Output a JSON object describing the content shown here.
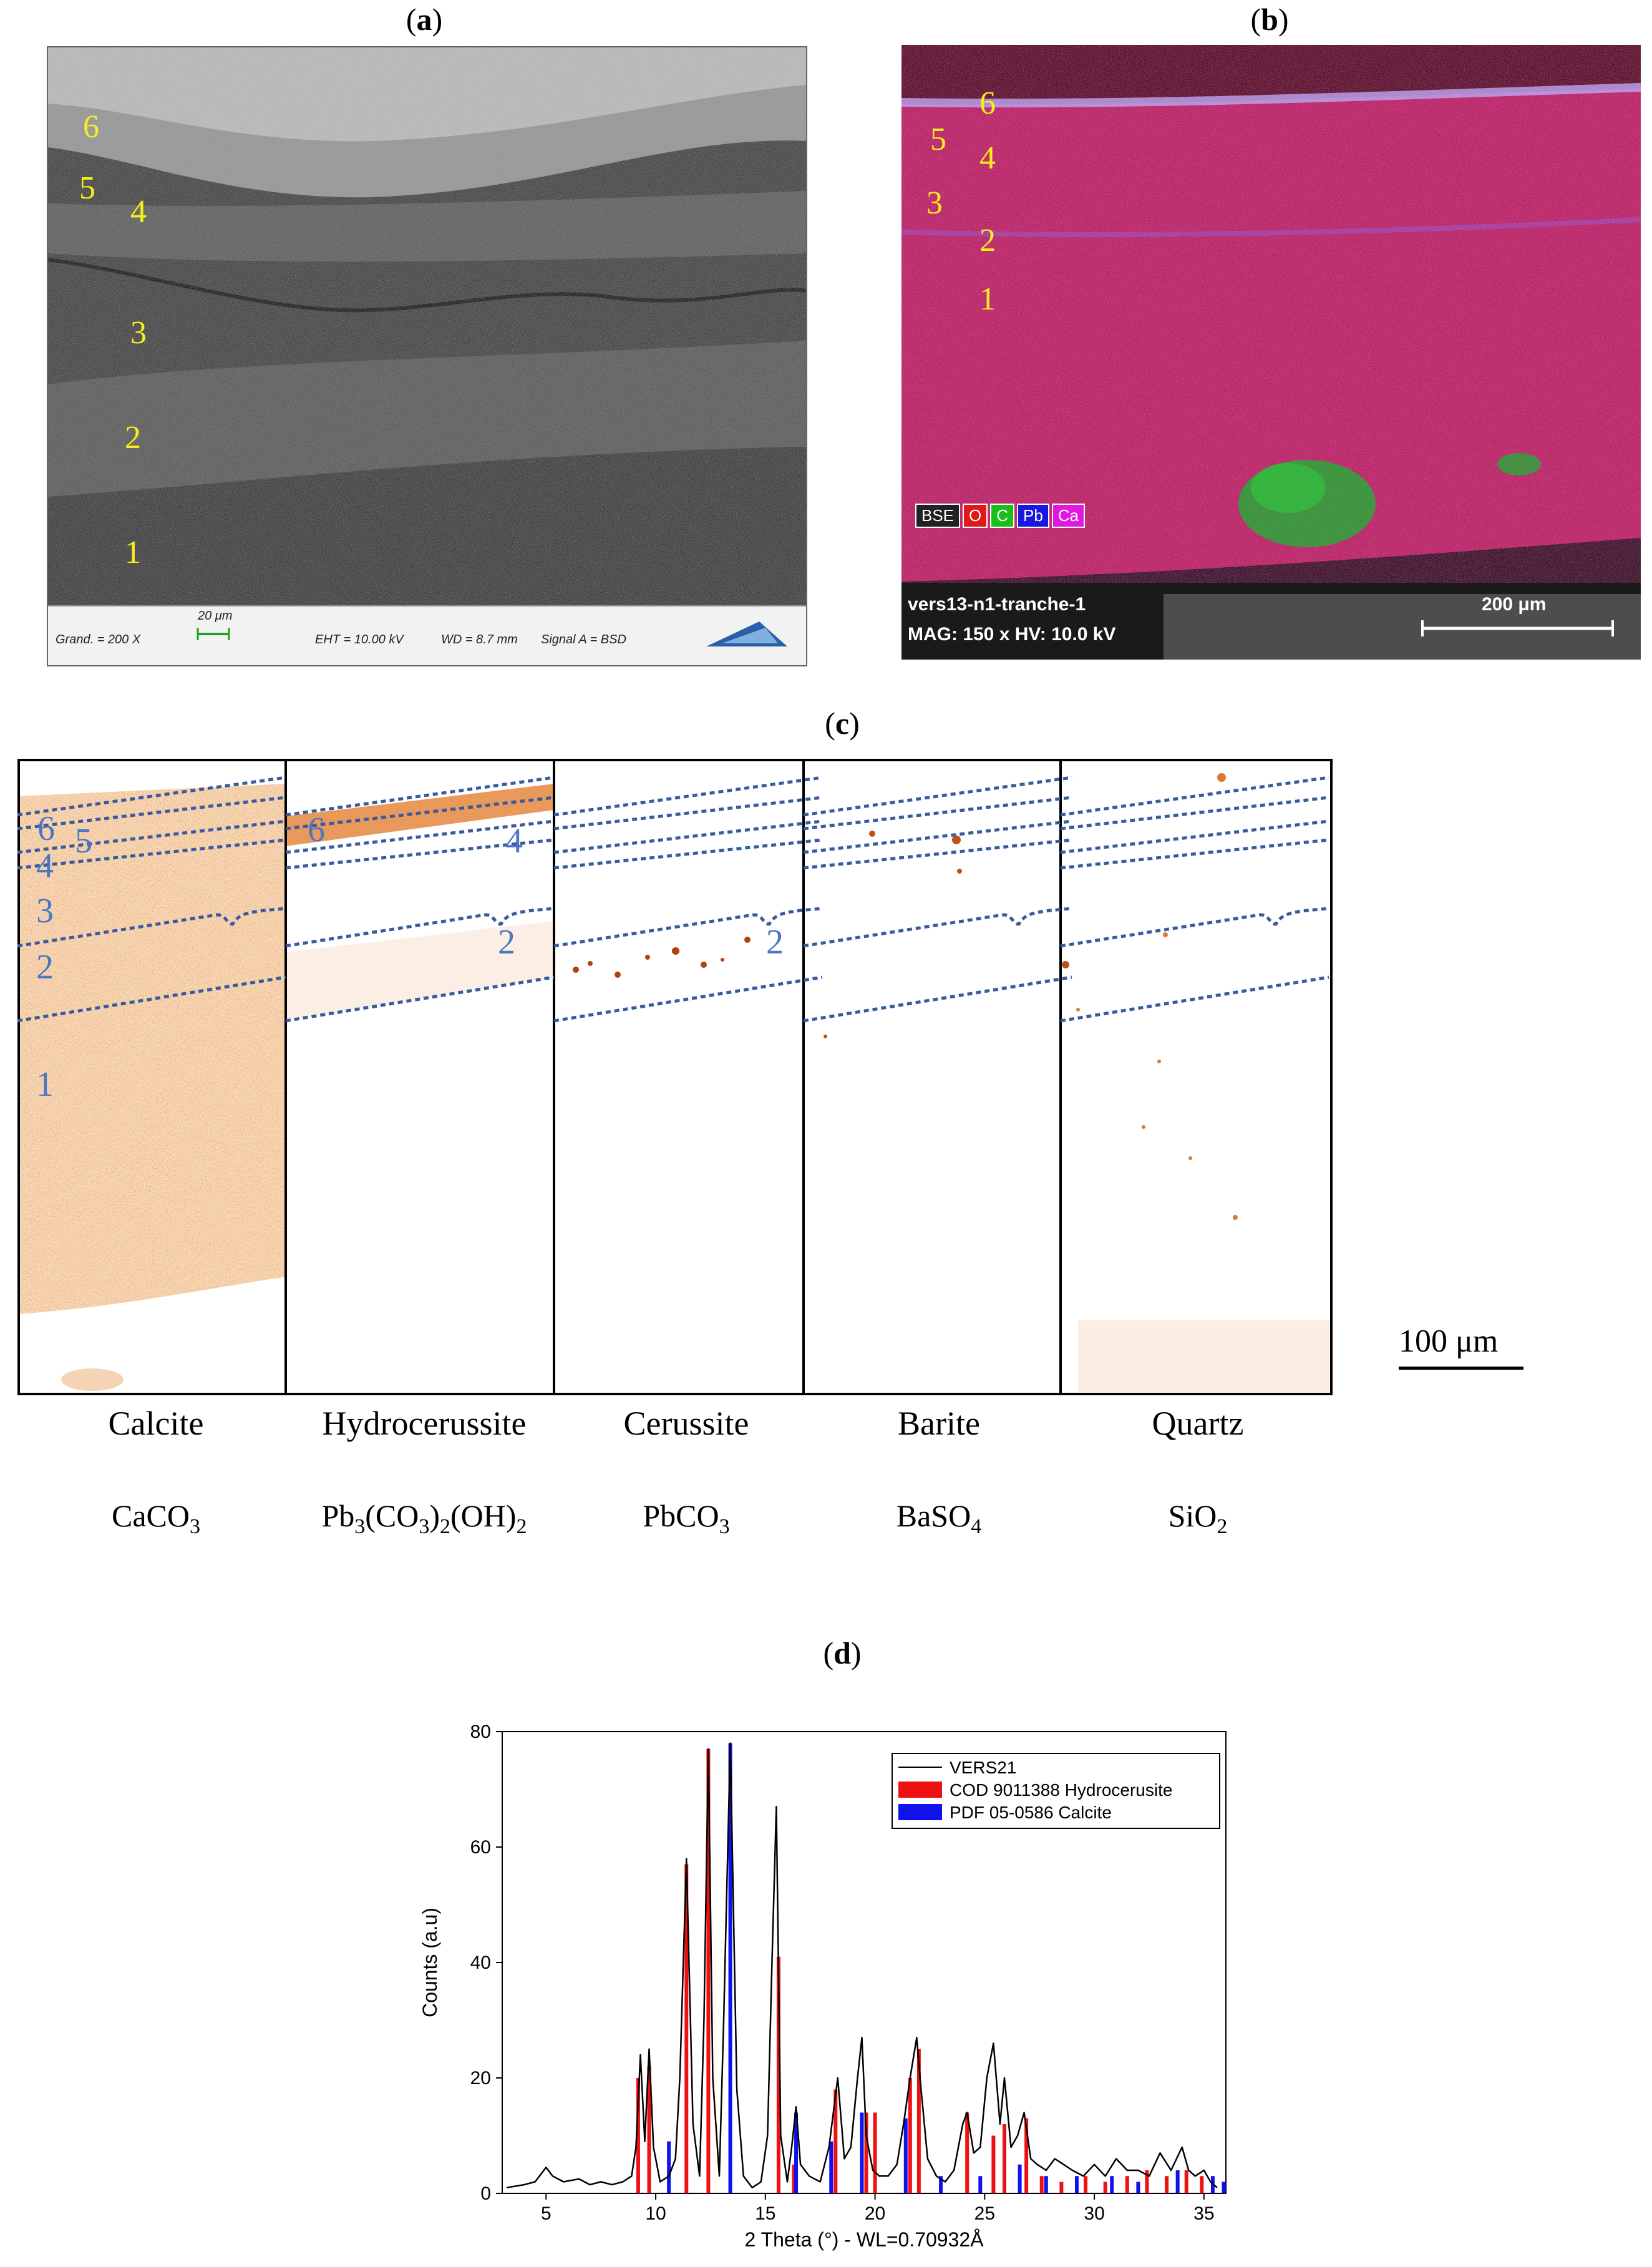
{
  "panels": {
    "a": {
      "letter": "a"
    },
    "b": {
      "letter": "b"
    },
    "c": {
      "letter": "c"
    },
    "d": {
      "letter": "d"
    }
  },
  "sem_a": {
    "layer_labels": [
      "6",
      "5",
      "4",
      "3",
      "2",
      "1"
    ],
    "info": {
      "grand": "Grand. =   200 X",
      "scale": "20 μm",
      "eht": "EHT = 10.00 kV",
      "wd": "WD =  8.7 mm",
      "signal": "Signal A = BSD"
    }
  },
  "sem_b": {
    "layer_labels": [
      "6",
      "5",
      "4",
      "3",
      "2",
      "1"
    ],
    "legend": [
      {
        "label": "BSE",
        "color": "#222222"
      },
      {
        "label": "O",
        "color": "#e01818"
      },
      {
        "label": "C",
        "color": "#18c018"
      },
      {
        "label": "Pb",
        "color": "#1818e0"
      },
      {
        "label": "Ca",
        "color": "#e018e0"
      }
    ],
    "sample_name": "vers13-n1-tranche-1",
    "mag": "MAG: 150 x  HV: 10.0 kV",
    "scale": "200 μm"
  },
  "maps": {
    "scale": "100 μm",
    "minerals": [
      {
        "name": "Calcite",
        "formula": [
          "CaCO",
          "3",
          ""
        ]
      },
      {
        "name": "Hydrocerussite",
        "formula": [
          "Pb",
          "3",
          "(CO",
          "3",
          ")",
          "2",
          "(OH)",
          "2"
        ]
      },
      {
        "name": "Cerussite",
        "formula": [
          "PbCO",
          "3"
        ]
      },
      {
        "name": "Barite",
        "formula": [
          "BaSO",
          "4"
        ]
      },
      {
        "name": "Quartz",
        "formula": [
          "SiO",
          "2"
        ]
      }
    ],
    "calcite_labels": [
      "6",
      "5",
      "4",
      "3",
      "2",
      "1"
    ],
    "hydro_labels": [
      "6",
      "4",
      "2"
    ],
    "cerussite_labels": [
      "2"
    ]
  },
  "chart_data": {
    "type": "line",
    "xlabel": "2 Theta (°) - WL=0.70932Å",
    "ylabel": "Counts (a.u)",
    "xlim": [
      3,
      36
    ],
    "ylim": [
      0,
      80
    ],
    "xticks": [
      5,
      10,
      15,
      20,
      25,
      30,
      35
    ],
    "yticks": [
      0,
      20,
      40,
      60,
      80
    ],
    "legend_position": "top-right",
    "series": [
      {
        "name": "VERS21",
        "kind": "line",
        "color": "#000000",
        "x": [
          3.2,
          4.0,
          4.5,
          5.0,
          5.3,
          5.8,
          6.5,
          7.0,
          7.5,
          8.0,
          8.5,
          8.9,
          9.1,
          9.3,
          9.5,
          9.7,
          9.9,
          10.2,
          10.6,
          10.9,
          11.1,
          11.4,
          11.7,
          12.0,
          12.2,
          12.4,
          12.6,
          12.9,
          13.1,
          13.4,
          13.7,
          14.0,
          14.4,
          14.8,
          15.1,
          15.3,
          15.5,
          15.7,
          16.0,
          16.2,
          16.4,
          16.6,
          17.0,
          17.5,
          17.9,
          18.1,
          18.3,
          18.6,
          18.9,
          19.2,
          19.4,
          19.6,
          19.9,
          20.2,
          20.6,
          21.0,
          21.3,
          21.6,
          21.9,
          22.1,
          22.4,
          22.8,
          23.2,
          23.6,
          24.0,
          24.2,
          24.5,
          24.8,
          25.1,
          25.4,
          25.7,
          25.9,
          26.2,
          26.5,
          26.8,
          27.1,
          27.4,
          27.8,
          28.2,
          28.6,
          29.0,
          29.5,
          30.0,
          30.5,
          31.0,
          31.5,
          32.0,
          32.5,
          33.0,
          33.5,
          34.0,
          34.3,
          34.6,
          35.0,
          35.3,
          35.6
        ],
        "y": [
          1,
          1.5,
          2,
          4.5,
          3,
          2,
          2.5,
          1.5,
          2,
          1.5,
          2,
          3,
          8,
          24,
          9,
          25,
          8,
          2,
          3,
          6,
          20,
          58,
          12,
          3,
          30,
          77,
          20,
          3,
          30,
          78,
          18,
          3,
          1,
          2,
          10,
          40,
          67,
          10,
          2,
          8,
          15,
          5,
          3,
          2,
          8,
          14,
          20,
          6,
          8,
          20,
          27,
          10,
          4,
          3,
          3,
          5,
          12,
          20,
          27,
          18,
          6,
          3,
          2,
          4,
          12,
          14,
          7,
          8,
          20,
          26,
          12,
          20,
          8,
          10,
          14,
          6,
          5,
          4,
          6,
          5,
          4,
          3,
          5,
          3,
          6,
          4,
          4,
          3,
          7,
          4,
          8,
          4,
          3,
          4,
          2,
          1
        ]
      },
      {
        "name": "COD 9011388 Hydrocerusite",
        "kind": "sticks",
        "color": "#ee1111",
        "x": [
          9.2,
          9.7,
          11.4,
          12.4,
          15.6,
          16.3,
          18.2,
          19.6,
          20.0,
          21.6,
          22.0,
          24.2,
          25.4,
          25.9,
          26.9,
          27.6,
          28.5,
          29.6,
          30.5,
          31.5,
          32.4,
          33.3,
          34.2,
          34.9
        ],
        "y": [
          20,
          22,
          57,
          77,
          41,
          5,
          18,
          14,
          14,
          20,
          25,
          14,
          10,
          12,
          13,
          3,
          2,
          3,
          2,
          3,
          4,
          3,
          4,
          3
        ]
      },
      {
        "name": "PDF 05-0586 Calcite",
        "kind": "sticks",
        "color": "#1111ee",
        "x": [
          10.6,
          13.4,
          16.4,
          18.0,
          19.4,
          21.4,
          23.0,
          24.8,
          26.6,
          27.8,
          29.2,
          30.8,
          32.0,
          33.8,
          35.4,
          35.9
        ],
        "y": [
          9,
          78,
          14,
          9,
          14,
          13,
          3,
          3,
          5,
          3,
          3,
          3,
          2,
          4,
          3,
          2
        ]
      }
    ]
  }
}
